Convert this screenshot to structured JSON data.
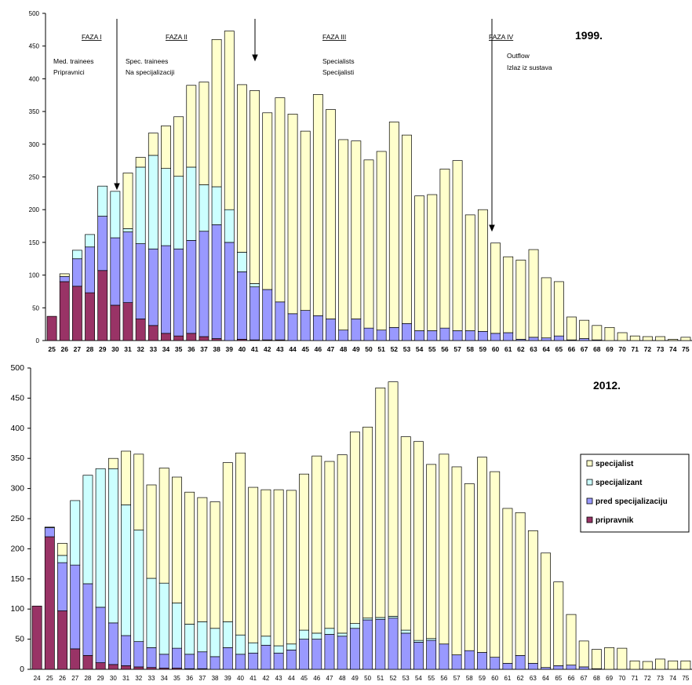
{
  "colors": {
    "pripravnik": "#993366",
    "pred_specijalizaciju": "#9999ff",
    "specijalizant": "#ccffff",
    "specijalist": "#ffffcc",
    "outline": "#000000"
  },
  "chart_data": [
    {
      "type": "bar",
      "stacked": true,
      "title": "1999.",
      "ylim": [
        0,
        500
      ],
      "yticks": [
        0,
        50,
        100,
        150,
        200,
        250,
        300,
        350,
        400,
        450,
        500
      ],
      "grid": false,
      "categories": [
        "25",
        "26",
        "27",
        "28",
        "29",
        "30",
        "31",
        "32",
        "33",
        "34",
        "35",
        "36",
        "37",
        "38",
        "39",
        "40",
        "41",
        "42",
        "43",
        "44",
        "45",
        "46",
        "47",
        "48",
        "49",
        "50",
        "51",
        "52",
        "53",
        "54",
        "55",
        "56",
        "57",
        "58",
        "59",
        "60",
        "61",
        "62",
        "63",
        "64",
        "65",
        "66",
        "67",
        "68",
        "69",
        "70",
        "71",
        "72",
        "73",
        "74",
        "75"
      ],
      "series": [
        {
          "key": "pripravnik",
          "values": [
            37,
            90,
            83,
            73,
            107,
            54,
            58,
            33,
            23,
            11,
            7,
            11,
            6,
            3,
            0,
            2,
            1,
            1,
            1,
            0,
            0,
            0,
            0,
            0,
            0,
            0,
            0,
            0,
            0,
            0,
            0,
            0,
            0,
            0,
            0,
            0,
            0,
            0,
            0,
            0,
            0,
            0,
            0,
            0,
            0,
            0,
            0,
            0,
            0,
            0,
            0
          ]
        },
        {
          "key": "pred_specijalizaciju",
          "values": [
            0,
            8,
            42,
            70,
            83,
            103,
            108,
            115,
            117,
            134,
            133,
            142,
            161,
            174,
            150,
            103,
            81,
            77,
            58,
            41,
            46,
            38,
            33,
            16,
            33,
            19,
            16,
            20,
            26,
            15,
            15,
            19,
            15,
            15,
            14,
            11,
            12,
            2,
            5,
            4,
            7,
            1,
            3,
            1,
            0,
            0,
            0,
            0,
            0,
            0,
            0
          ]
        },
        {
          "key": "specijalizant",
          "values": [
            0,
            0,
            13,
            19,
            46,
            71,
            5,
            117,
            143,
            118,
            111,
            112,
            71,
            58,
            50,
            30,
            5,
            0,
            0,
            0,
            0,
            0,
            0,
            0,
            0,
            0,
            0,
            0,
            0,
            0,
            0,
            0,
            0,
            0,
            0,
            0,
            0,
            0,
            0,
            0,
            0,
            0,
            0,
            0,
            0,
            0,
            0,
            0,
            0,
            0,
            0
          ]
        },
        {
          "key": "specijalist",
          "values": [
            0,
            4,
            0,
            0,
            0,
            0,
            85,
            15,
            34,
            65,
            91,
            125,
            157,
            225,
            273,
            256,
            295,
            270,
            312,
            305,
            274,
            338,
            320,
            291,
            272,
            257,
            273,
            314,
            288,
            206,
            208,
            243,
            260,
            177,
            186,
            138,
            116,
            121,
            134,
            92,
            83,
            35,
            28,
            22,
            20,
            12,
            7,
            6,
            6,
            2,
            5
          ]
        }
      ],
      "annotations": {
        "phases": [
          {
            "label": "FAZA I",
            "line1": "Med. trainees",
            "line2": "Pripravnici"
          },
          {
            "label": "FAZA II",
            "line1": "Spec. trainees",
            "line2": "Na specijalizaciji"
          },
          {
            "label": "FAZA III",
            "line1": "Specialists",
            "line2": "Specijalisti"
          },
          {
            "label": "FAZA IV",
            "line1": "Outflow",
            "line2": "Izlaz iz sustava"
          }
        ]
      }
    },
    {
      "type": "bar",
      "stacked": true,
      "title": "2012.",
      "ylim": [
        0,
        500
      ],
      "yticks": [
        0,
        50,
        100,
        150,
        200,
        250,
        300,
        350,
        400,
        450,
        500
      ],
      "grid": false,
      "legend_position": "right",
      "categories": [
        "24",
        "25",
        "26",
        "27",
        "28",
        "29",
        "30",
        "31",
        "32",
        "33",
        "34",
        "35",
        "36",
        "37",
        "38",
        "39",
        "40",
        "41",
        "42",
        "43",
        "44",
        "45",
        "46",
        "47",
        "48",
        "49",
        "50",
        "51",
        "52",
        "53",
        "54",
        "55",
        "56",
        "57",
        "58",
        "59",
        "60",
        "61",
        "62",
        "63",
        "64",
        "65",
        "66",
        "67",
        "68",
        "69",
        "70",
        "71",
        "72",
        "73",
        "74",
        "75"
      ],
      "series": [
        {
          "key": "pripravnik",
          "values": [
            105,
            220,
            97,
            34,
            23,
            11,
            8,
            6,
            4,
            3,
            2,
            2,
            1,
            1,
            0,
            0,
            0,
            0,
            0,
            0,
            0,
            0,
            0,
            0,
            0,
            0,
            0,
            0,
            0,
            0,
            0,
            0,
            0,
            0,
            0,
            0,
            0,
            0,
            0,
            0,
            0,
            0,
            0,
            0,
            0,
            0,
            0,
            0,
            0,
            0,
            0,
            0
          ]
        },
        {
          "key": "pred_specijalizaciju",
          "values": [
            0,
            15,
            80,
            139,
            119,
            92,
            69,
            50,
            42,
            33,
            23,
            33,
            24,
            28,
            21,
            36,
            25,
            27,
            40,
            27,
            32,
            50,
            50,
            58,
            55,
            68,
            82,
            83,
            85,
            60,
            45,
            48,
            42,
            24,
            31,
            28,
            20,
            10,
            23,
            10,
            3,
            6,
            7,
            4,
            1,
            0,
            0,
            0,
            0,
            0,
            0,
            0
          ]
        },
        {
          "key": "specijalizant",
          "values": [
            0,
            1,
            12,
            107,
            180,
            230,
            256,
            217,
            185,
            115,
            118,
            75,
            50,
            50,
            47,
            43,
            32,
            17,
            15,
            12,
            10,
            15,
            10,
            10,
            5,
            8,
            3,
            3,
            3,
            5,
            3,
            3,
            0,
            0,
            0,
            0,
            0,
            0,
            0,
            0,
            0,
            0,
            0,
            0,
            0,
            0,
            0,
            0,
            0,
            0,
            0,
            0
          ]
        },
        {
          "key": "specijalist",
          "values": [
            0,
            0,
            20,
            0,
            0,
            0,
            17,
            89,
            126,
            155,
            191,
            209,
            219,
            206,
            210,
            264,
            302,
            258,
            243,
            259,
            255,
            259,
            294,
            277,
            296,
            318,
            317,
            381,
            389,
            321,
            330,
            289,
            315,
            312,
            277,
            324,
            308,
            257,
            237,
            220,
            190,
            139,
            84,
            43,
            32,
            36,
            35,
            14,
            13,
            17,
            14,
            14
          ]
        }
      ],
      "legend": [
        {
          "key": "specijalist",
          "label": "specijalist"
        },
        {
          "key": "specijalizant",
          "label": "specijalizant"
        },
        {
          "key": "pred_specijalizaciju",
          "label": "pred specijalizaciju"
        },
        {
          "key": "pripravnik",
          "label": "pripravnik"
        }
      ]
    }
  ]
}
